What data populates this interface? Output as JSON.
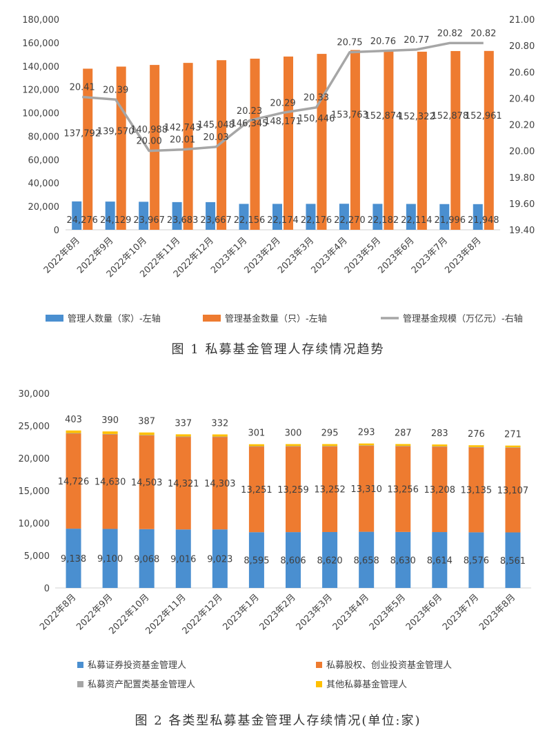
{
  "chart_data": [
    {
      "type": "bar",
      "categories": [
        "2022年8月",
        "2022年9月",
        "2022年10月",
        "2022年11月",
        "2022年12月",
        "2023年1月",
        "2023年2月",
        "2023年3月",
        "2023年4月",
        "2023年5月",
        "2023年6月",
        "2023年7月",
        "2023年8月"
      ],
      "series": [
        {
          "name": "管理人数量（家）-左轴",
          "type": "bar",
          "axis": "left",
          "color": "#4a8fd0",
          "values": [
            24276,
            24129,
            23967,
            23683,
            23667,
            22156,
            22174,
            22176,
            22270,
            22182,
            22114,
            21996,
            21948
          ],
          "labels": [
            "24,276",
            "24,129",
            "23,967",
            "23,683",
            "23,667",
            "22,156",
            "22,174",
            "22,176",
            "22,270",
            "22,182",
            "22,114",
            "21,996",
            "21,948"
          ]
        },
        {
          "name": "管理基金数量（只）-左轴",
          "type": "bar",
          "axis": "left",
          "color": "#ee7b30",
          "values": [
            137792,
            139570,
            140988,
            142743,
            145048,
            146345,
            148171,
            150446,
            153763,
            152874,
            152322,
            152878,
            152961
          ],
          "labels": [
            "137,792",
            "139,570",
            "140,988",
            "142,743",
            "145,048",
            "146,345",
            "148,171",
            "150,446",
            "153,763",
            "152,874",
            "152,322",
            "152,878",
            "152,961"
          ]
        },
        {
          "name": "管理基金规模（万亿元）-右轴",
          "type": "line",
          "axis": "right",
          "color": "#a6a6a6",
          "values": [
            20.41,
            20.39,
            20.0,
            20.01,
            20.03,
            20.23,
            20.29,
            20.33,
            20.75,
            20.76,
            20.77,
            20.82,
            20.82
          ],
          "labels": [
            "20.41",
            "20.39",
            "20.00",
            "20.01",
            "20.03",
            "20.23",
            "20.29",
            "20.33",
            "20.75",
            "20.76",
            "20.77",
            "20.82",
            "20.82"
          ]
        }
      ],
      "ylim": [
        0,
        180000
      ],
      "yticks": [
        "0",
        "20,000",
        "40,000",
        "60,000",
        "80,000",
        "100,000",
        "120,000",
        "140,000",
        "160,000",
        "180,000"
      ],
      "y2lim": [
        19.4,
        21.0
      ],
      "y2ticks": [
        "19.40",
        "19.60",
        "19.80",
        "20.00",
        "20.20",
        "20.40",
        "20.60",
        "20.80",
        "21.00"
      ],
      "legend_position": "bottom",
      "grid": false,
      "caption": "图 1  私募基金管理人存续情况趋势"
    },
    {
      "type": "bar",
      "stacked": true,
      "categories": [
        "2022年8月",
        "2022年9月",
        "2022年10月",
        "2022年11月",
        "2022年12月",
        "2023年1月",
        "2023年2月",
        "2023年3月",
        "2023年4月",
        "2023年5月",
        "2023年6月",
        "2023年7月",
        "2023年8月"
      ],
      "series": [
        {
          "name": "私募证券投资基金管理人",
          "color": "#4a8fd0",
          "values": [
            9138,
            9100,
            9068,
            9016,
            9023,
            8595,
            8606,
            8620,
            8658,
            8630,
            8614,
            8576,
            8561
          ],
          "labels": [
            "9,138",
            "9,100",
            "9,068",
            "9,016",
            "9,023",
            "8,595",
            "8,606",
            "8,620",
            "8,658",
            "8,630",
            "8,614",
            "8,576",
            "8,561"
          ]
        },
        {
          "name": "私募股权、创业投资基金管理人",
          "color": "#ee7b30",
          "values": [
            14726,
            14630,
            14503,
            14321,
            14303,
            13251,
            13259,
            13252,
            13310,
            13256,
            13208,
            13135,
            13107
          ],
          "labels": [
            "14,726",
            "14,630",
            "14,503",
            "14,321",
            "14,303",
            "13,251",
            "13,259",
            "13,252",
            "13,310",
            "13,256",
            "13,208",
            "13,135",
            "13,107"
          ]
        },
        {
          "name": "私募资产配置类基金管理人",
          "color": "#a6a6a6",
          "values": [
            9,
            9,
            9,
            9,
            9,
            9,
            9,
            9,
            9,
            9,
            9,
            9,
            9
          ],
          "labels": []
        },
        {
          "name": "其他私募基金管理人",
          "color": "#ffc000",
          "values": [
            403,
            390,
            387,
            337,
            332,
            301,
            300,
            295,
            293,
            287,
            283,
            276,
            271
          ],
          "labels": [
            "403",
            "390",
            "387",
            "337",
            "332",
            "301",
            "300",
            "295",
            "293",
            "287",
            "283",
            "276",
            "271"
          ]
        }
      ],
      "ylim": [
        0,
        30000
      ],
      "yticks": [
        "0",
        "5,000",
        "10,000",
        "15,000",
        "20,000",
        "25,000",
        "30,000"
      ],
      "legend_position": "bottom",
      "grid": false,
      "caption": "图 2  各类型私募基金管理人存续情况(单位:家)"
    }
  ]
}
